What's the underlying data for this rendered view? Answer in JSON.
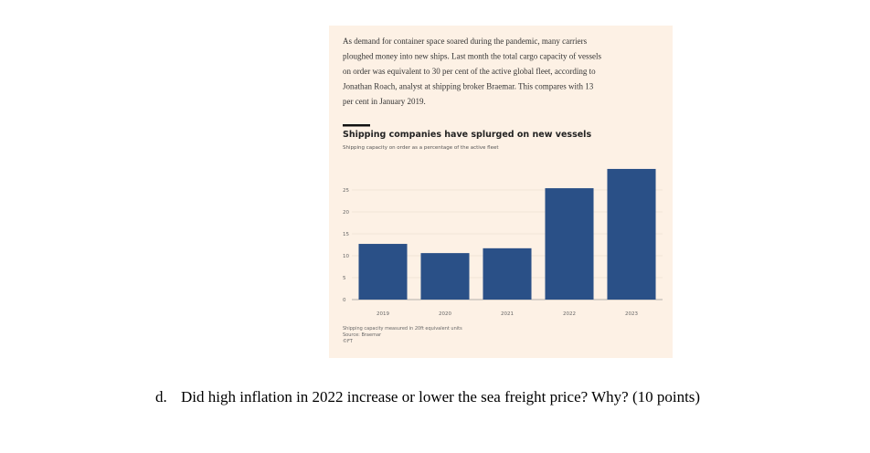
{
  "article": {
    "lines": [
      "As demand for container space soared during the pandemic, many carriers",
      "ploughed money into new ships. Last month the total cargo capacity of vessels",
      "on order was equivalent to 30 per cent of the active global fleet, according to",
      "Jonathan Roach, analyst at shipping broker Braemar. This compares with 13",
      "per cent in January 2019."
    ]
  },
  "chart_data": {
    "type": "bar",
    "title": "Shipping companies have splurged on new vessels",
    "subtitle": "Shipping capacity on order as a percentage of the active fleet",
    "categories": [
      "2019",
      "2020",
      "2021",
      "2022",
      "2023"
    ],
    "values": [
      12.7,
      10.6,
      11.7,
      25.4,
      29.8
    ],
    "color": "#2a5087",
    "ylim": [
      0,
      30
    ],
    "yticks": [
      0,
      5,
      10,
      15,
      20,
      25
    ],
    "grid": true,
    "notes": [
      "Shipping capacity measured in 20ft equivalent units",
      "Source: Braemar",
      "©FT"
    ]
  },
  "question": {
    "number": "d.",
    "text": "Did high inflation in 2022 increase or lower the sea freight price? Why? (10 points)"
  }
}
